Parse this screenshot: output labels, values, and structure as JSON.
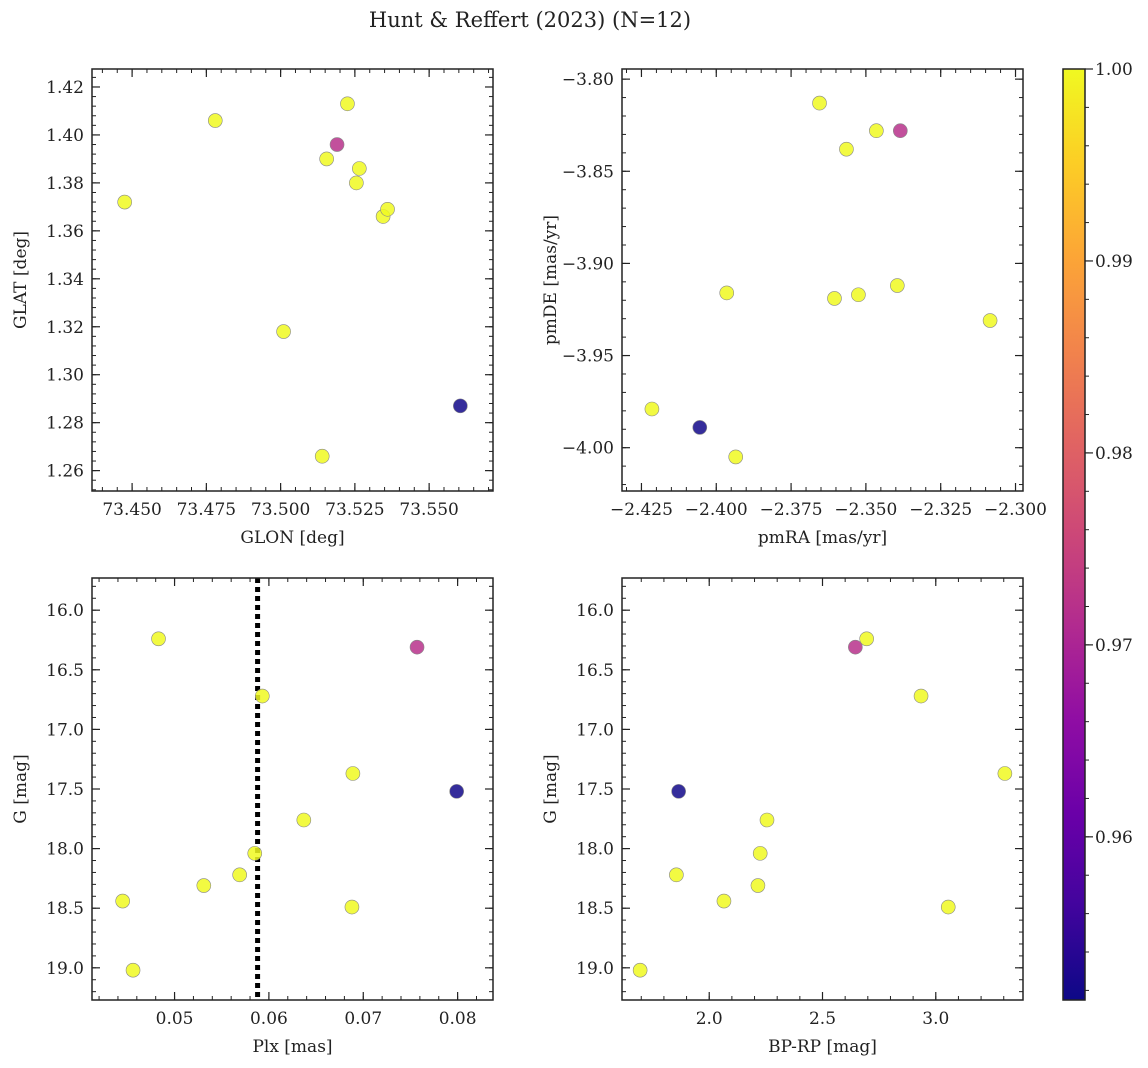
{
  "figure": {
    "title": "Hunt & Reffert (2023) (N=12)"
  },
  "colorbar": {
    "ticks": [
      0.96,
      0.97,
      0.98,
      0.99,
      1.0
    ],
    "tick_labels": [
      "0.96",
      "0.97",
      "0.98",
      "0.99",
      "1.00"
    ],
    "range": [
      0.9515,
      1.0
    ],
    "colormap": "plasma"
  },
  "chart_data": [
    {
      "type": "scatter",
      "name": "glon-glat",
      "xlabel": "GLON [deg]",
      "ylabel": "GLAT [deg]",
      "xlim": [
        73.4365,
        73.5715
      ],
      "ylim": [
        1.2515,
        1.4275
      ],
      "xticks": [
        73.45,
        73.475,
        73.5,
        73.525,
        73.55
      ],
      "xtick_labels": [
        "73.450",
        "73.475",
        "73.500",
        "73.525",
        "73.550"
      ],
      "yticks": [
        1.26,
        1.28,
        1.3,
        1.32,
        1.34,
        1.36,
        1.38,
        1.4,
        1.42
      ],
      "ytick_labels": [
        "1.26",
        "1.28",
        "1.30",
        "1.32",
        "1.34",
        "1.36",
        "1.38",
        "1.40",
        "1.42"
      ],
      "invert_y": false,
      "points": [
        {
          "x": 73.4475,
          "y": 1.372,
          "c": 1.0
        },
        {
          "x": 73.478,
          "y": 1.406,
          "c": 1.0
        },
        {
          "x": 73.501,
          "y": 1.318,
          "c": 1.0
        },
        {
          "x": 73.514,
          "y": 1.266,
          "c": 1.0
        },
        {
          "x": 73.5155,
          "y": 1.39,
          "c": 1.0
        },
        {
          "x": 73.519,
          "y": 1.396,
          "c": 0.972
        },
        {
          "x": 73.5225,
          "y": 1.413,
          "c": 1.0
        },
        {
          "x": 73.5255,
          "y": 1.38,
          "c": 1.0
        },
        {
          "x": 73.5265,
          "y": 1.386,
          "c": 1.0
        },
        {
          "x": 73.5345,
          "y": 1.366,
          "c": 1.0
        },
        {
          "x": 73.536,
          "y": 1.369,
          "c": 1.0
        },
        {
          "x": 73.5605,
          "y": 1.287,
          "c": 0.952
        }
      ]
    },
    {
      "type": "scatter",
      "name": "pmra-pmde",
      "xlabel": "pmRA [mas/yr]",
      "ylabel": "pmDE [mas/yr]",
      "xlim": [
        -2.4315,
        -2.2975
      ],
      "ylim": [
        -4.0235,
        -3.7945
      ],
      "xticks": [
        -2.425,
        -2.4,
        -2.375,
        -2.35,
        -2.325,
        -2.3
      ],
      "xtick_labels": [
        "−2.425",
        "−2.400",
        "−2.375",
        "−2.350",
        "−2.325",
        "−2.300"
      ],
      "yticks": [
        -4.0,
        -3.95,
        -3.9,
        -3.85,
        -3.8
      ],
      "ytick_labels": [
        "−4.00",
        "−3.95",
        "−3.90",
        "−3.85",
        "−3.80"
      ],
      "invert_y": false,
      "points": [
        {
          "x": -2.4215,
          "y": -3.979,
          "c": 1.0
        },
        {
          "x": -2.4055,
          "y": -3.989,
          "c": 0.952
        },
        {
          "x": -2.3965,
          "y": -3.916,
          "c": 1.0
        },
        {
          "x": -2.3935,
          "y": -4.005,
          "c": 1.0
        },
        {
          "x": -2.3655,
          "y": -3.813,
          "c": 1.0
        },
        {
          "x": -2.3605,
          "y": -3.919,
          "c": 1.0
        },
        {
          "x": -2.3565,
          "y": -3.838,
          "c": 1.0
        },
        {
          "x": -2.3525,
          "y": -3.917,
          "c": 1.0
        },
        {
          "x": -2.3465,
          "y": -3.828,
          "c": 1.0
        },
        {
          "x": -2.3395,
          "y": -3.912,
          "c": 1.0
        },
        {
          "x": -2.3385,
          "y": -3.828,
          "c": 0.972
        },
        {
          "x": -2.3085,
          "y": -3.931,
          "c": 1.0
        }
      ]
    },
    {
      "type": "scatter",
      "name": "plx-g",
      "xlabel": "Plx [mas]",
      "ylabel": "G [mag]",
      "xlim": [
        0.04125,
        0.08375
      ],
      "ylim": [
        15.73,
        19.27
      ],
      "xticks": [
        0.05,
        0.06,
        0.07,
        0.08
      ],
      "xtick_labels": [
        "0.05",
        "0.06",
        "0.07",
        "0.08"
      ],
      "yticks": [
        16.0,
        16.5,
        17.0,
        17.5,
        18.0,
        18.5,
        19.0
      ],
      "ytick_labels": [
        "16.0",
        "16.5",
        "17.0",
        "17.5",
        "18.0",
        "18.5",
        "19.0"
      ],
      "invert_y": true,
      "vline": {
        "x": 0.0588,
        "style": "dotted"
      },
      "points": [
        {
          "x": 0.0445,
          "y": 18.44,
          "c": 1.0
        },
        {
          "x": 0.0456,
          "y": 19.02,
          "c": 1.0
        },
        {
          "x": 0.0483,
          "y": 16.24,
          "c": 1.0
        },
        {
          "x": 0.0531,
          "y": 18.31,
          "c": 1.0
        },
        {
          "x": 0.0569,
          "y": 18.22,
          "c": 1.0
        },
        {
          "x": 0.0585,
          "y": 18.04,
          "c": 1.0
        },
        {
          "x": 0.0593,
          "y": 16.72,
          "c": 1.0
        },
        {
          "x": 0.0637,
          "y": 17.76,
          "c": 1.0
        },
        {
          "x": 0.0688,
          "y": 18.49,
          "c": 1.0
        },
        {
          "x": 0.0689,
          "y": 17.37,
          "c": 1.0
        },
        {
          "x": 0.0757,
          "y": 16.31,
          "c": 0.972
        },
        {
          "x": 0.0799,
          "y": 17.52,
          "c": 0.952
        }
      ]
    },
    {
      "type": "scatter",
      "name": "bprp-g",
      "xlabel": "BP-RP [mag]",
      "ylabel": "G [mag]",
      "xlim": [
        1.615,
        3.385
      ],
      "ylim": [
        15.73,
        19.27
      ],
      "xticks": [
        2.0,
        2.5,
        3.0
      ],
      "xtick_labels": [
        "2.0",
        "2.5",
        "3.0"
      ],
      "yticks": [
        16.0,
        16.5,
        17.0,
        17.5,
        18.0,
        18.5,
        19.0
      ],
      "ytick_labels": [
        "16.0",
        "16.5",
        "17.0",
        "17.5",
        "18.0",
        "18.5",
        "19.0"
      ],
      "invert_y": true,
      "points": [
        {
          "x": 1.695,
          "y": 19.02,
          "c": 1.0
        },
        {
          "x": 1.855,
          "y": 18.22,
          "c": 1.0
        },
        {
          "x": 1.865,
          "y": 17.52,
          "c": 0.952
        },
        {
          "x": 2.065,
          "y": 18.44,
          "c": 1.0
        },
        {
          "x": 2.215,
          "y": 18.31,
          "c": 1.0
        },
        {
          "x": 2.225,
          "y": 18.04,
          "c": 1.0
        },
        {
          "x": 2.255,
          "y": 17.76,
          "c": 1.0
        },
        {
          "x": 2.645,
          "y": 16.31,
          "c": 0.972
        },
        {
          "x": 2.695,
          "y": 16.24,
          "c": 1.0
        },
        {
          "x": 2.935,
          "y": 16.72,
          "c": 1.0
        },
        {
          "x": 3.055,
          "y": 18.49,
          "c": 1.0
        },
        {
          "x": 3.305,
          "y": 17.37,
          "c": 1.0
        }
      ]
    }
  ]
}
